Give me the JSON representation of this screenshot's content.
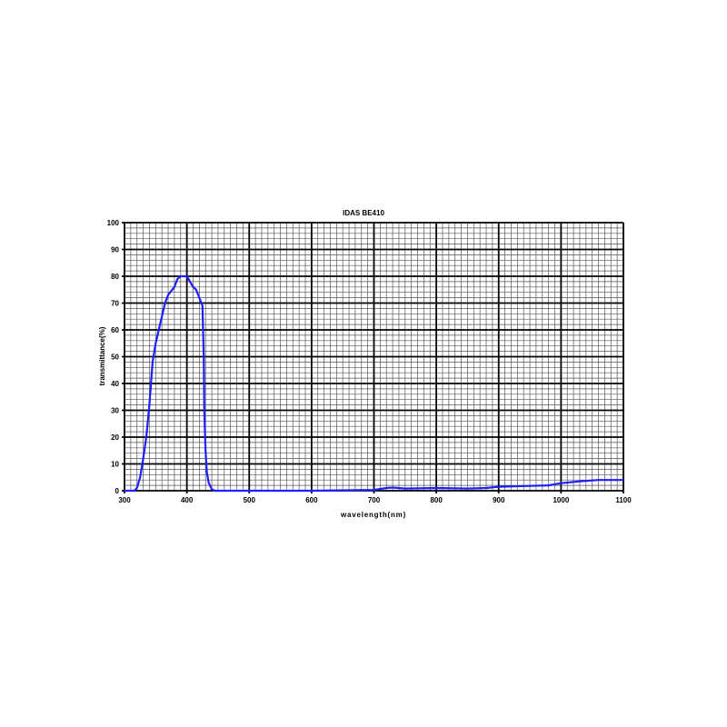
{
  "chart_data": {
    "type": "line",
    "title": "IDAS BE410",
    "xlabel": "wavelength(nm)",
    "ylabel": "transmittance(%)",
    "xlim": [
      300,
      1100
    ],
    "ylim": [
      0,
      100
    ],
    "xticks": [
      300,
      400,
      500,
      600,
      700,
      800,
      900,
      1000,
      1100
    ],
    "yticks": [
      0,
      10,
      20,
      30,
      40,
      50,
      60,
      70,
      80,
      90,
      100
    ],
    "grid": true,
    "line_color": "#1f1fff",
    "series": [
      {
        "x": [
          300,
          316,
          320,
          325,
          330,
          335,
          340,
          345,
          350,
          360,
          365,
          370,
          380,
          385,
          390,
          395,
          400,
          405,
          410,
          415,
          420,
          425,
          427,
          428,
          430,
          432,
          435,
          440,
          445,
          500,
          600,
          700,
          720,
          730,
          750,
          800,
          850,
          880,
          900,
          950,
          980,
          1000,
          1030,
          1060,
          1100
        ],
        "y": [
          0,
          0,
          1,
          5,
          12,
          20,
          32,
          48,
          55,
          65,
          70,
          73,
          76,
          79,
          80,
          80,
          80,
          78,
          76,
          75,
          72,
          69,
          50,
          30,
          15,
          7,
          3,
          0.5,
          0,
          0,
          0,
          0.3,
          1,
          1.2,
          0.8,
          1,
          0.8,
          1,
          1.5,
          1.8,
          2,
          2.8,
          3.5,
          4,
          4
        ]
      }
    ]
  }
}
